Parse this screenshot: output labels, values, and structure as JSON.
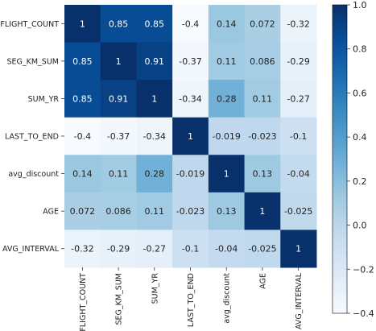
{
  "chart_data": {
    "type": "heatmap",
    "title": "",
    "xlabel": "",
    "ylabel": "",
    "row_labels": [
      "FLIGHT_COUNT",
      "SEG_KM_SUM",
      "SUM_YR",
      "LAST_TO_END",
      "avg_discount",
      "AGE",
      "AVG_INTERVAL"
    ],
    "col_labels": [
      "FLIGHT_COUNT",
      "SEG_KM_SUM",
      "SUM_YR",
      "LAST_TO_END",
      "avg_discount",
      "AGE",
      "AVG_INTERVAL"
    ],
    "values": [
      [
        1,
        0.85,
        0.85,
        -0.4,
        0.14,
        0.072,
        -0.32
      ],
      [
        0.85,
        1,
        0.91,
        -0.37,
        0.11,
        0.086,
        -0.29
      ],
      [
        0.85,
        0.91,
        1,
        -0.34,
        0.28,
        0.11,
        -0.27
      ],
      [
        -0.4,
        -0.37,
        -0.34,
        1,
        -0.019,
        -0.023,
        -0.1
      ],
      [
        0.14,
        0.11,
        0.28,
        -0.019,
        1,
        0.13,
        -0.04
      ],
      [
        0.072,
        0.086,
        0.11,
        -0.023,
        0.13,
        1,
        -0.025
      ],
      [
        -0.32,
        -0.29,
        -0.27,
        -0.1,
        -0.04,
        -0.025,
        1
      ]
    ],
    "value_labels": [
      [
        "1",
        "0.85",
        "0.85",
        "-0.4",
        "0.14",
        "0.072",
        "-0.32"
      ],
      [
        "0.85",
        "1",
        "0.91",
        "-0.37",
        "0.11",
        "0.086",
        "-0.29"
      ],
      [
        "0.85",
        "0.91",
        "1",
        "-0.34",
        "0.28",
        "0.11",
        "-0.27"
      ],
      [
        "-0.4",
        "-0.37",
        "-0.34",
        "1",
        "-0.019",
        "-0.023",
        "-0.1"
      ],
      [
        "0.14",
        "0.11",
        "0.28",
        "-0.019",
        "1",
        "0.13",
        "-0.04"
      ],
      [
        "0.072",
        "0.086",
        "0.11",
        "-0.023",
        "0.13",
        "1",
        "-0.025"
      ],
      [
        "-0.32",
        "-0.29",
        "-0.27",
        "-0.1",
        "-0.04",
        "-0.025",
        "1"
      ]
    ],
    "colormap": "Blues",
    "vmin": -0.4,
    "vmax": 1.0,
    "colorbar_ticks": [
      1.0,
      0.8,
      0.6,
      0.4,
      0.2,
      0.0,
      -0.2,
      -0.4
    ],
    "colorbar_tick_labels": [
      "1.0",
      "0.8",
      "0.6",
      "0.4",
      "0.2",
      "0.0",
      "−0.2",
      "−0.4"
    ],
    "colorbar_position": "right",
    "grid": false,
    "square_cells": true
  }
}
